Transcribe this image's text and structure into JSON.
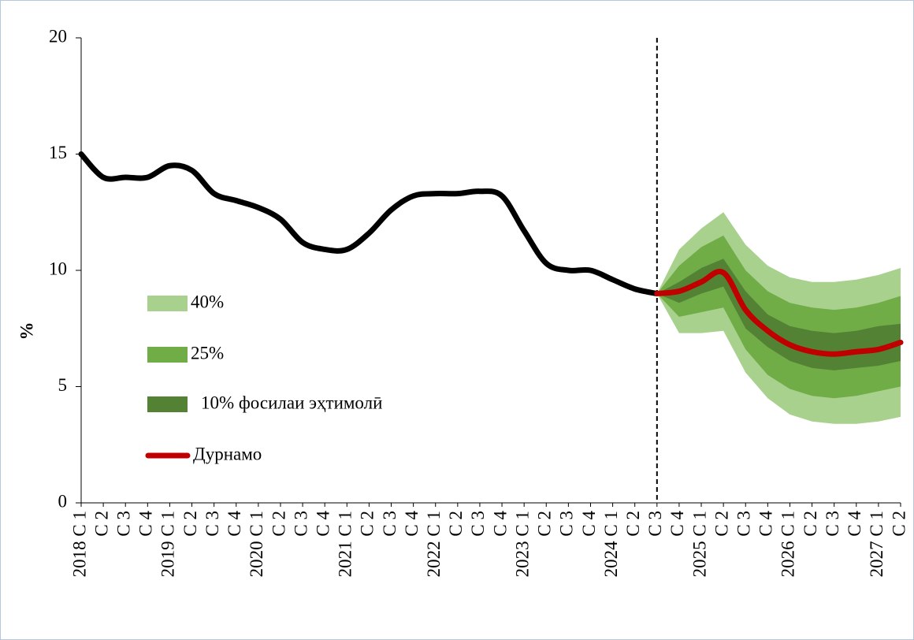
{
  "chart_data": {
    "type": "fan",
    "y_label": "%",
    "categories": [
      "2018 С 1",
      "С 2",
      "С 3",
      "С 4",
      "2019 С 1",
      "С 2",
      "С 3",
      "С 4",
      "2020 С 1",
      "С 2",
      "С 3",
      "С 4",
      "2021 С 1",
      "С 2",
      "С 3",
      "С 4",
      "2022 С 1",
      "С 2",
      "С 3",
      "С 4",
      "2023 С 1",
      "С 2",
      "С 3",
      "С 4",
      "2024 С 1",
      "С 2",
      "С 3",
      "С 4",
      "2025 С 1",
      "С 2",
      "С 3",
      "С 4",
      "2026 С 1",
      "С 2",
      "С 3",
      "С 4",
      "2027 С 1",
      "С 2"
    ],
    "ylim": [
      0,
      20
    ],
    "yticks": [
      0,
      5,
      10,
      15,
      20
    ],
    "actual": {
      "color": "#000000",
      "values": [
        15.0,
        14.0,
        14.0,
        14.0,
        14.5,
        14.3,
        13.3,
        13.0,
        12.7,
        12.2,
        11.2,
        10.9,
        10.9,
        11.6,
        12.6,
        13.2,
        13.3,
        13.3,
        13.4,
        13.2,
        11.7,
        10.3,
        10.0,
        10.0,
        9.6,
        9.2,
        9.0,
        null,
        null,
        null,
        null,
        null,
        null,
        null,
        null,
        null,
        null,
        null
      ]
    },
    "bands": [
      {
        "name": "40%",
        "color": "#a9d18e",
        "upper": [
          null,
          null,
          null,
          null,
          null,
          null,
          null,
          null,
          null,
          null,
          null,
          null,
          null,
          null,
          null,
          null,
          null,
          null,
          null,
          null,
          null,
          null,
          null,
          null,
          null,
          null,
          9.0,
          10.9,
          11.8,
          12.5,
          11.1,
          10.2,
          9.7,
          9.5,
          9.5,
          9.6,
          9.8,
          10.1
        ],
        "lower": [
          null,
          null,
          null,
          null,
          null,
          null,
          null,
          null,
          null,
          null,
          null,
          null,
          null,
          null,
          null,
          null,
          null,
          null,
          null,
          null,
          null,
          null,
          null,
          null,
          null,
          null,
          9.0,
          7.3,
          7.3,
          7.4,
          5.6,
          4.5,
          3.8,
          3.5,
          3.4,
          3.4,
          3.5,
          3.7
        ]
      },
      {
        "name": "25%",
        "color": "#70ad47",
        "upper": [
          null,
          null,
          null,
          null,
          null,
          null,
          null,
          null,
          null,
          null,
          null,
          null,
          null,
          null,
          null,
          null,
          null,
          null,
          null,
          null,
          null,
          null,
          null,
          null,
          null,
          null,
          9.0,
          10.2,
          11.0,
          11.5,
          10.0,
          9.1,
          8.6,
          8.4,
          8.3,
          8.4,
          8.6,
          8.9
        ],
        "lower": [
          null,
          null,
          null,
          null,
          null,
          null,
          null,
          null,
          null,
          null,
          null,
          null,
          null,
          null,
          null,
          null,
          null,
          null,
          null,
          null,
          null,
          null,
          null,
          null,
          null,
          null,
          9.0,
          8.0,
          8.2,
          8.4,
          6.6,
          5.5,
          4.9,
          4.6,
          4.5,
          4.6,
          4.8,
          5.0
        ]
      },
      {
        "name": "10% фосилаи эҳтимолӣ",
        "color": "#548235",
        "upper": [
          null,
          null,
          null,
          null,
          null,
          null,
          null,
          null,
          null,
          null,
          null,
          null,
          null,
          null,
          null,
          null,
          null,
          null,
          null,
          null,
          null,
          null,
          null,
          null,
          null,
          null,
          9.0,
          9.5,
          10.1,
          10.5,
          9.1,
          8.1,
          7.6,
          7.4,
          7.3,
          7.4,
          7.6,
          7.7
        ],
        "lower": [
          null,
          null,
          null,
          null,
          null,
          null,
          null,
          null,
          null,
          null,
          null,
          null,
          null,
          null,
          null,
          null,
          null,
          null,
          null,
          null,
          null,
          null,
          null,
          null,
          null,
          null,
          9.0,
          8.6,
          9.0,
          9.3,
          7.5,
          6.7,
          6.1,
          5.8,
          5.7,
          5.8,
          5.9,
          6.1
        ]
      }
    ],
    "series": [
      {
        "name": "Дурнамо",
        "color": "#c00000",
        "values": [
          null,
          null,
          null,
          null,
          null,
          null,
          null,
          null,
          null,
          null,
          null,
          null,
          null,
          null,
          null,
          null,
          null,
          null,
          null,
          null,
          null,
          null,
          null,
          null,
          null,
          null,
          9.0,
          9.1,
          9.5,
          9.9,
          8.3,
          7.4,
          6.8,
          6.5,
          6.4,
          6.5,
          6.6,
          6.9
        ]
      }
    ]
  }
}
